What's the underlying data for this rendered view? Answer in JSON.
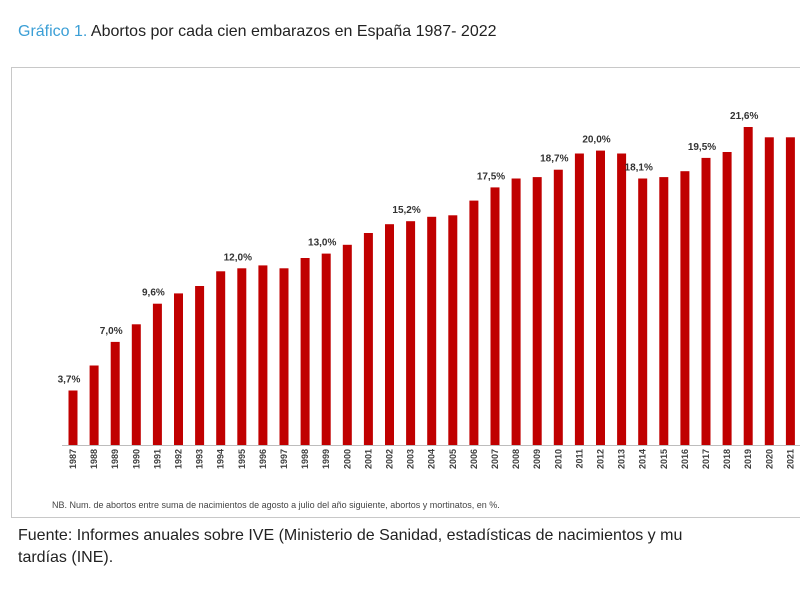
{
  "title": {
    "label": "Gráfico 1.",
    "text": " Abortos por cada cien embarazos en España 1987- 2022"
  },
  "note": "NB. Num. de abortos entre suma de nacimientos de agosto a julio del año siguiente, abortos y mortinatos, en %.",
  "source": {
    "line1": "Fuente: Informes anuales sobre IVE (Ministerio de Sanidad, estadísticas de nacimientos y mu",
    "line2": "tardías (INE)."
  },
  "colors": {
    "bar": "#c00000",
    "title_label": "#3b9fd6"
  },
  "chart_data": {
    "type": "bar",
    "categories": [
      "1987",
      "1988",
      "1989",
      "1990",
      "1991",
      "1992",
      "1993",
      "1994",
      "1995",
      "1996",
      "1997",
      "1998",
      "1999",
      "2000",
      "2001",
      "2002",
      "2003",
      "2004",
      "2005",
      "2006",
      "2007",
      "2008",
      "2009",
      "2010",
      "2011",
      "2012",
      "2013",
      "2014",
      "2015",
      "2016",
      "2017",
      "2018",
      "2019",
      "2020",
      "2021"
    ],
    "values": [
      3.7,
      5.4,
      7.0,
      8.2,
      9.6,
      10.3,
      10.8,
      11.8,
      12.0,
      12.2,
      12.0,
      12.7,
      13.0,
      13.6,
      14.4,
      15.0,
      15.2,
      15.5,
      15.6,
      16.6,
      17.5,
      18.1,
      18.2,
      18.7,
      19.8,
      20.0,
      19.8,
      18.1,
      18.2,
      18.6,
      19.5,
      19.9,
      21.6,
      20.9,
      20.9
    ],
    "data_labels": {
      "1987": "3,7%",
      "1989": "7,0%",
      "1991": "9,6%",
      "1995": "12,0%",
      "1999": "13,0%",
      "2003": "15,2%",
      "2007": "17,5%",
      "2010": "18,7%",
      "2012": "20,0%",
      "2014": "18,1%",
      "2017": "19,5%",
      "2019": "21,6%"
    },
    "ylim": [
      0,
      23
    ],
    "grid": false
  }
}
